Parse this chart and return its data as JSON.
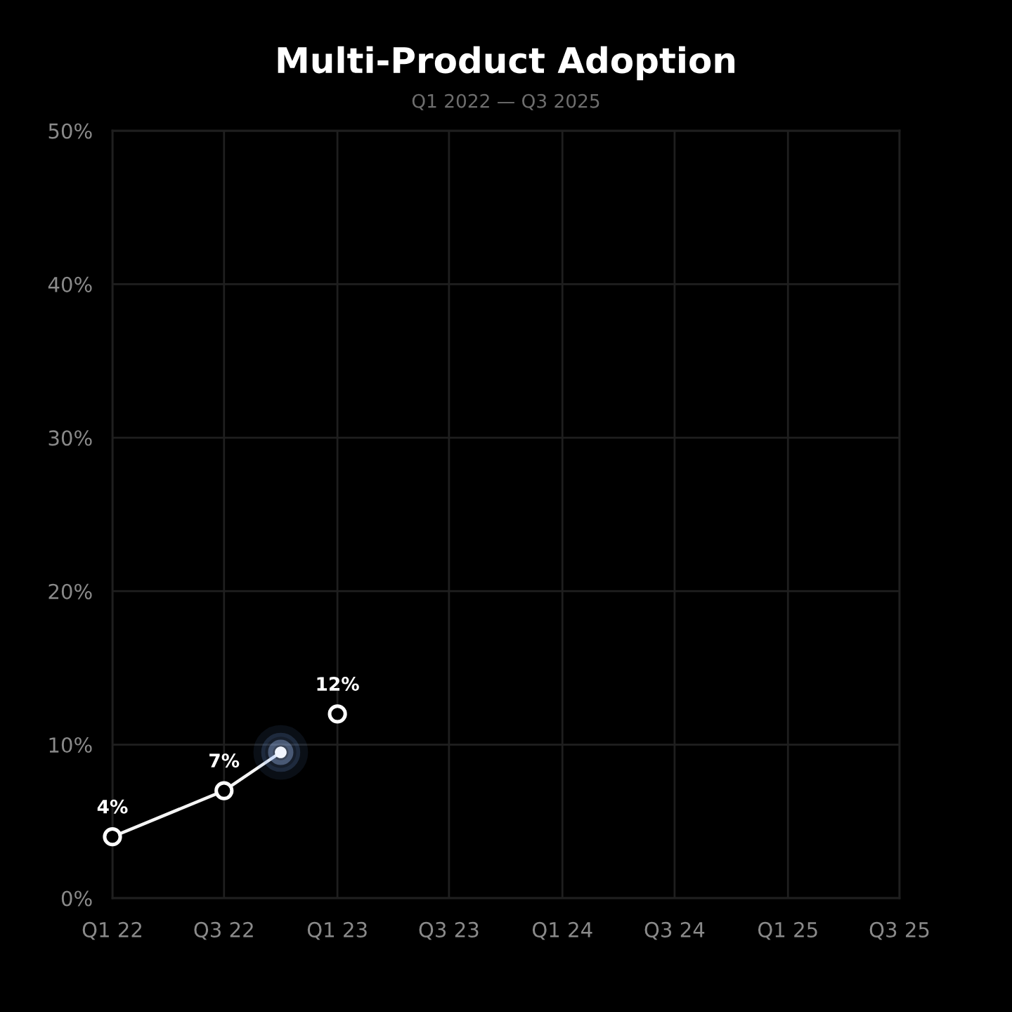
{
  "chart_data": {
    "type": "line",
    "title": "Multi-Product Adoption",
    "subtitle": "Q1 2022 — Q3 2025",
    "xlim": [
      "2022-01",
      "2025-07"
    ],
    "xticks": [
      {
        "value": "2022-01",
        "label": "Q1 22"
      },
      {
        "value": "2022-07",
        "label": "Q3 22"
      },
      {
        "value": "2023-01",
        "label": "Q1 23"
      },
      {
        "value": "2023-07",
        "label": "Q3 23"
      },
      {
        "value": "2024-01",
        "label": "Q1 24"
      },
      {
        "value": "2024-07",
        "label": "Q3 24"
      },
      {
        "value": "2025-01",
        "label": "Q1 25"
      },
      {
        "value": "2025-07",
        "label": "Q3 25"
      }
    ],
    "ylim": [
      0,
      50
    ],
    "yticks": [
      {
        "value": 0,
        "label": "0%"
      },
      {
        "value": 10,
        "label": "10%"
      },
      {
        "value": 20,
        "label": "20%"
      },
      {
        "value": 30,
        "label": "30%"
      },
      {
        "value": 40,
        "label": "40%"
      },
      {
        "value": 50,
        "label": "50%"
      }
    ],
    "grid": true,
    "series": [
      {
        "x": [
          "2022-01",
          "2022-07",
          "2022-10"
        ],
        "values": [
          4,
          7,
          9.5
        ],
        "color": "#f5f5f5",
        "marker": "none"
      },
      {
        "type": "scatter",
        "x": [
          "2022-01",
          "2022-07",
          "2023-01"
        ],
        "values": [
          4,
          7,
          12
        ],
        "color": "#ffffff",
        "marker": "circle",
        "value_labels": [
          "4%",
          "7%",
          "12%"
        ]
      },
      {
        "type": "scatter",
        "x": [
          "2022-10"
        ],
        "values": [
          9.5
        ],
        "color": "#f2f6ff",
        "marker": "circle"
      }
    ]
  }
}
